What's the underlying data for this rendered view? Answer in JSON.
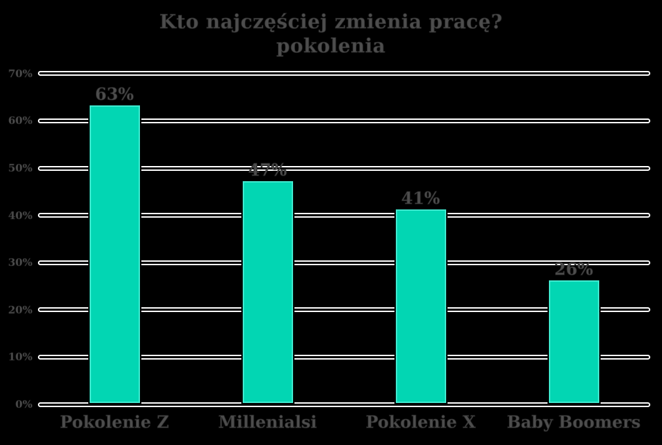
{
  "chart": {
    "title": "Kto najczęściej zmienia pracę?",
    "subtitle": "pokolenia"
  },
  "chart_data": {
    "type": "bar",
    "title": "Kto najczęściej zmienia pracę?",
    "subtitle": "pokolenia",
    "categories": [
      "Pokolenie Z",
      "Millenialsi",
      "Pokolenie X",
      "Baby Boomers"
    ],
    "values": [
      63,
      47,
      41,
      26
    ],
    "value_labels": [
      "63%",
      "47%",
      "41%",
      "26%"
    ],
    "xlabel": "",
    "ylabel": "",
    "ylim": [
      0,
      70
    ],
    "ytick_step": 10,
    "ytick_labels": [
      "0%",
      "10%",
      "20%",
      "30%",
      "40%",
      "50%",
      "60%",
      "70%"
    ],
    "grid": "horizontal-white-capsule-lines",
    "legend": "none",
    "colors": {
      "background": "#000000",
      "bar_fill": "#02d6b3",
      "bar_edge": "#3fe9cf",
      "gridline": "#ffffff",
      "text": "#4d4d4d"
    }
  }
}
